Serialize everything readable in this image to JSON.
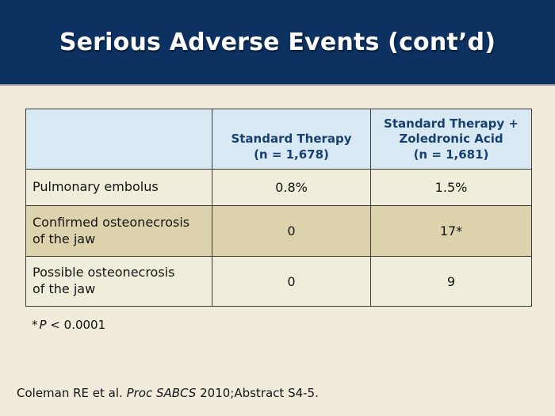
{
  "slide": {
    "title": "Serious Adverse Events (cont’d)"
  },
  "table": {
    "header": {
      "blank": "",
      "standard_therapy": {
        "line1": "Standard Therapy",
        "line2": "(n = 1,678)"
      },
      "combination": {
        "line1": "Standard Therapy +",
        "line2": "Zoledronic Acid",
        "line3": "(n = 1,681)"
      }
    },
    "rows": [
      {
        "label_line1": "Pulmonary embolus",
        "label_line2": "",
        "standard": "0.8%",
        "combination": "1.5%"
      },
      {
        "label_line1": "Confirmed osteonecrosis",
        "label_line2": "of the jaw",
        "standard": "0",
        "combination": "17*"
      },
      {
        "label_line1": "Possible osteonecrosis",
        "label_line2": "of the jaw",
        "standard": "0",
        "combination": "9"
      }
    ]
  },
  "footnote": {
    "marker": "*",
    "p_symbol": "P",
    "text": " < 0.0001"
  },
  "citation": {
    "pre": "Coleman RE et al. ",
    "italic": "Proc SABCS",
    "post": " 2010;Abstract S4-5."
  },
  "colors": {
    "banner": "#0D3161",
    "page_background": "#F0EBDB",
    "header_cell": "#D8E9F4",
    "row_cream": "#F1EDDB",
    "row_tan": "#DCD3AC",
    "table_border": "#3B3B3B",
    "header_text": "#17406F",
    "title_text": "#FFFFFF"
  }
}
